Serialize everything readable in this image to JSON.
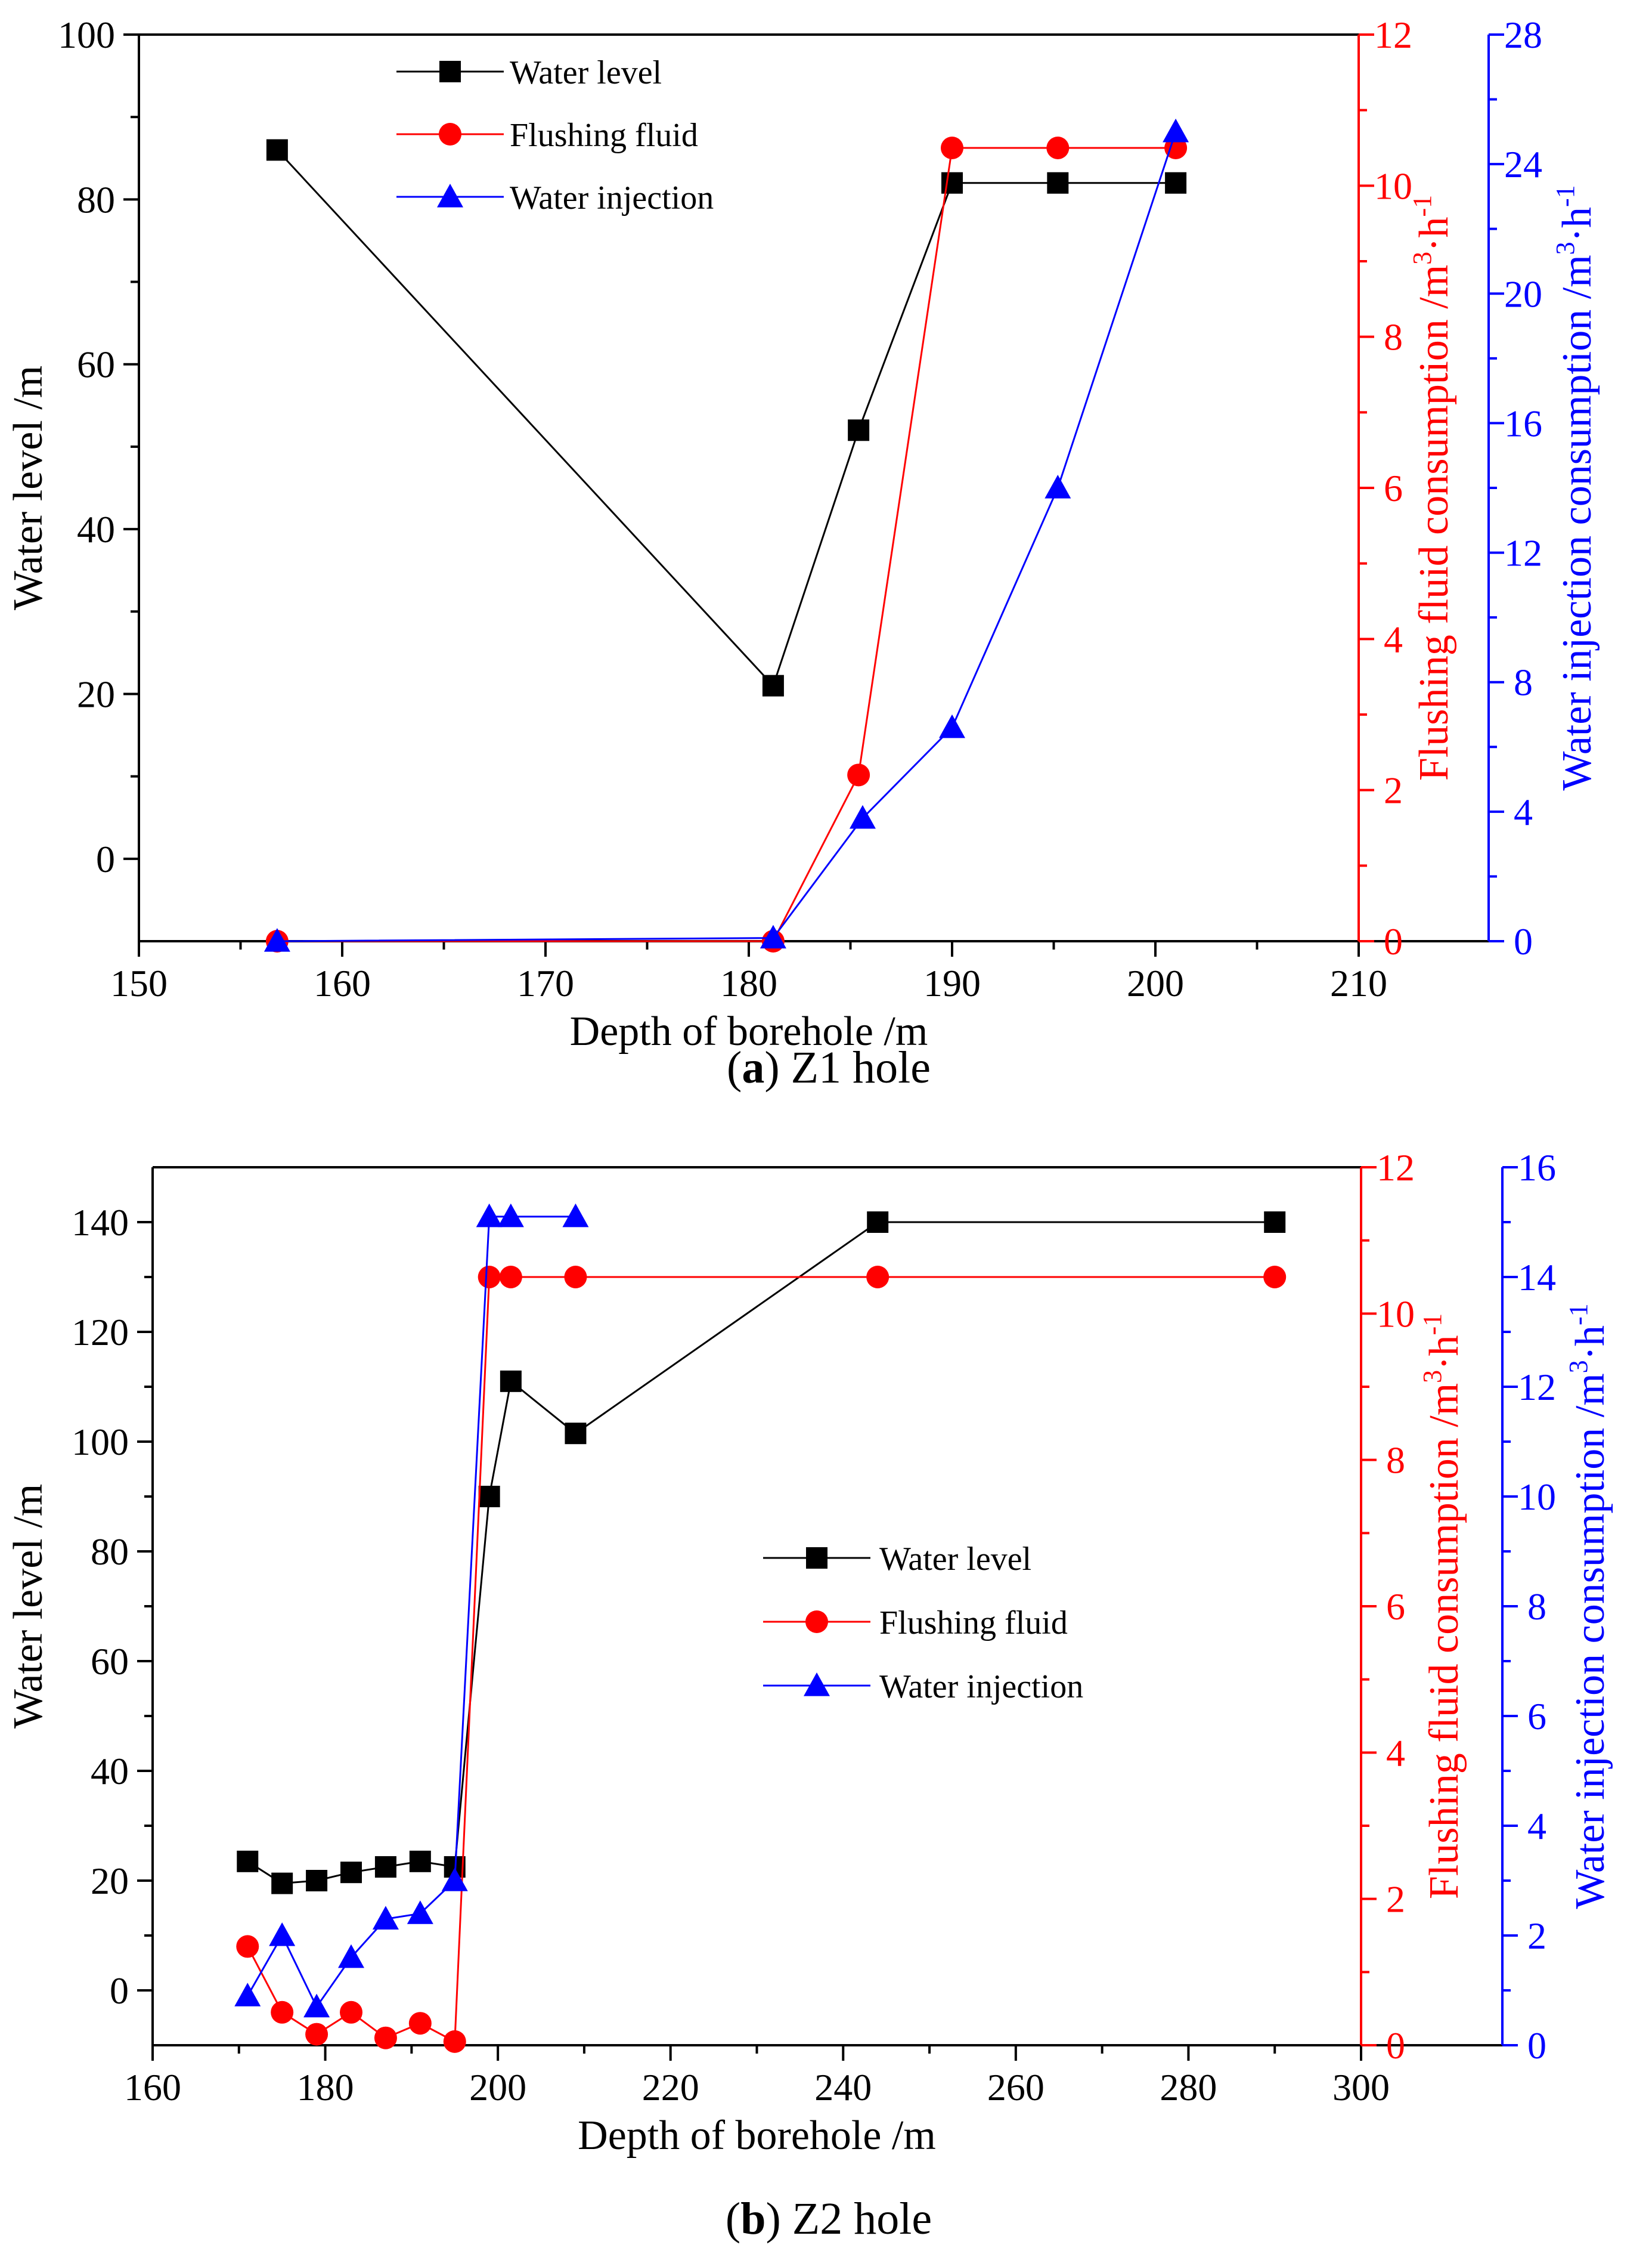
{
  "colors": {
    "black": "#000000",
    "red": "#ff0000",
    "blue": "#0000ff"
  },
  "chart_data": [
    {
      "type": "line",
      "caption_letter": "a",
      "caption_text": ") Z1 hole",
      "xlabel": "Depth of borehole /m",
      "xlim": [
        150,
        210
      ],
      "xticks": [
        "150",
        "160",
        "170",
        "180",
        "190",
        "200",
        "210"
      ],
      "legend_position": "top-center",
      "axes": [
        {
          "id": "left",
          "label": "Water level /m",
          "color": "#000000",
          "range": [
            -10,
            100
          ],
          "ticks": [
            [
              "0",
              0
            ],
            [
              "20",
              20
            ],
            [
              "40",
              40
            ],
            [
              "60",
              60
            ],
            [
              "80",
              80
            ],
            [
              "100",
              100
            ]
          ]
        },
        {
          "id": "right1",
          "label": "Flushing fluid consumption /m³·h⁻¹",
          "color": "#ff0000",
          "range": [
            0,
            12
          ],
          "ticks": [
            [
              "0",
              0
            ],
            [
              "2",
              2
            ],
            [
              "4",
              4
            ],
            [
              "6",
              6
            ],
            [
              "8",
              8
            ],
            [
              "10",
              10
            ],
            [
              "12",
              12
            ]
          ]
        },
        {
          "id": "right2",
          "label": "Water injection consumption /m³·h⁻¹",
          "color": "#0000ff",
          "range": [
            0,
            28
          ],
          "ticks": [
            [
              "0",
              0
            ],
            [
              "4",
              4
            ],
            [
              "8",
              8
            ],
            [
              "12",
              12
            ],
            [
              "16",
              16
            ],
            [
              "20",
              20
            ],
            [
              "24",
              24
            ],
            [
              "28",
              28
            ]
          ]
        }
      ],
      "series": [
        {
          "name": "Water level",
          "axis": "left",
          "color": "#000000",
          "marker": "square",
          "x": [
            156.8,
            181.2,
            185.4,
            190.0,
            195.2,
            201.0
          ],
          "y": [
            86,
            21,
            52,
            82,
            82,
            82
          ]
        },
        {
          "name": "Flushing fluid",
          "axis": "right1",
          "color": "#ff0000",
          "marker": "circle",
          "x": [
            156.8,
            181.2,
            185.4,
            190.0,
            195.2,
            201.0
          ],
          "y": [
            0.0,
            0.0,
            2.2,
            10.5,
            10.5,
            10.5
          ]
        },
        {
          "name": "Water injection",
          "axis": "right2",
          "color": "#0000ff",
          "marker": "triangle",
          "x": [
            156.8,
            181.2,
            185.6,
            190.0,
            195.2,
            201.0
          ],
          "y": [
            0.0,
            0.1,
            3.8,
            6.6,
            14.0,
            25.0
          ]
        }
      ]
    },
    {
      "type": "line",
      "caption_letter": "b",
      "caption_text": ") Z2 hole",
      "xlabel": "Depth of borehole /m",
      "xlim": [
        160,
        300
      ],
      "xticks": [
        "160",
        "180",
        "200",
        "220",
        "240",
        "260",
        "280",
        "300"
      ],
      "legend_position": "center",
      "axes": [
        {
          "id": "left",
          "label": "Water level /m",
          "color": "#000000",
          "range": [
            -10,
            150
          ],
          "ticks": [
            [
              "0",
              0
            ],
            [
              "20",
              20
            ],
            [
              "40",
              40
            ],
            [
              "60",
              60
            ],
            [
              "80",
              80
            ],
            [
              "100",
              100
            ],
            [
              "120",
              120
            ],
            [
              "140",
              140
            ]
          ]
        },
        {
          "id": "right1",
          "label": "Flushing fluid consumption /m³·h⁻¹",
          "color": "#ff0000",
          "range": [
            0,
            12
          ],
          "ticks": [
            [
              "0",
              0
            ],
            [
              "2",
              2
            ],
            [
              "4",
              4
            ],
            [
              "6",
              6
            ],
            [
              "8",
              8
            ],
            [
              "10",
              10
            ],
            [
              "12",
              12
            ]
          ]
        },
        {
          "id": "right2",
          "label": "Water injection consumption /m³·h⁻¹",
          "color": "#0000ff",
          "range": [
            0,
            16
          ],
          "ticks": [
            [
              "0",
              0
            ],
            [
              "2",
              2
            ],
            [
              "4",
              4
            ],
            [
              "6",
              6
            ],
            [
              "8",
              8
            ],
            [
              "10",
              10
            ],
            [
              "12",
              12
            ],
            [
              "14",
              14
            ],
            [
              "16",
              16
            ]
          ]
        }
      ],
      "series": [
        {
          "name": "Water level",
          "axis": "left",
          "color": "#000000",
          "marker": "square",
          "x": [
            171,
            175,
            179,
            183,
            187,
            191,
            195,
            199,
            201.5,
            209,
            244,
            290
          ],
          "y": [
            23.5,
            19.5,
            20,
            21.5,
            22.5,
            23.5,
            22.5,
            90,
            111,
            101.5,
            140,
            140
          ]
        },
        {
          "name": "Flushing fluid",
          "axis": "right1",
          "color": "#ff0000",
          "marker": "circle",
          "x": [
            171,
            175,
            179,
            183,
            187,
            191,
            195,
            199,
            201.5,
            209,
            244,
            290
          ],
          "y": [
            1.35,
            0.45,
            0.15,
            0.45,
            0.1,
            0.3,
            0.05,
            10.5,
            10.5,
            10.5,
            10.5,
            10.5
          ]
        },
        {
          "name": "Water injection",
          "axis": "right2",
          "color": "#0000ff",
          "marker": "triangle",
          "x": [
            171,
            175,
            179,
            183,
            187,
            191,
            195,
            199,
            201.5,
            209
          ],
          "y": [
            0.9,
            2.0,
            0.7,
            1.6,
            2.3,
            2.4,
            3.0,
            15.1,
            15.1,
            15.1
          ]
        }
      ]
    }
  ]
}
